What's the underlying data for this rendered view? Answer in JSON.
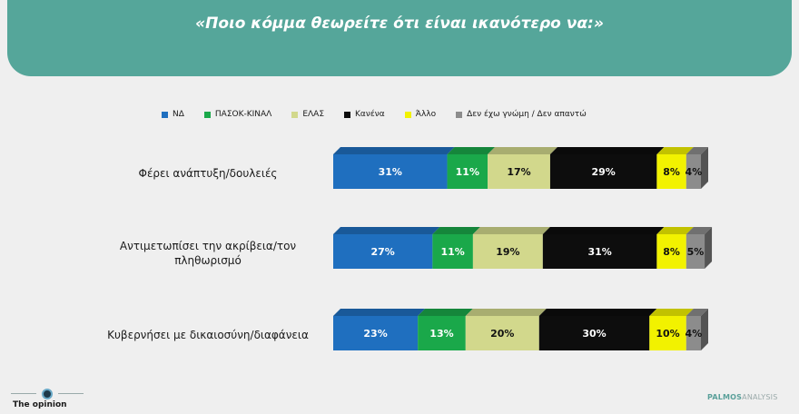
{
  "header": {
    "title": "«Ποιο κόμμα θεωρείτε ότι είναι ικανότερο να:»"
  },
  "colors": {
    "header_bg": "#55a69a",
    "series": [
      "#1f6fbf",
      "#1aa84a",
      "#d2d88c",
      "#0d0d0d",
      "#f2f200",
      "#8c8c8c"
    ]
  },
  "chart_data": {
    "type": "bar",
    "orientation": "horizontal",
    "stacked": true,
    "categories": [
      "Φέρει ανάπτυξη/δουλειές",
      "Αντιμετωπίσει την ακρίβεια/τον πληθωρισμό",
      "Κυβερνήσει με δικαιοσύνη/διαφάνεια"
    ],
    "category_lines": [
      [
        "Φέρει ανάπτυξη/δουλειές"
      ],
      [
        "Αντιμετωπίσει την ακρίβεια/τον",
        "πληθωρισμό"
      ],
      [
        "Κυβερνήσει με δικαιοσύνη/διαφάνεια"
      ]
    ],
    "series": [
      {
        "name": "ΝΔ",
        "color": "#1f6fbf",
        "values": [
          31,
          27,
          23
        ]
      },
      {
        "name": "ΠΑΣΟΚ-ΚΙΝΑΛ",
        "color": "#1aa84a",
        "values": [
          11,
          11,
          13
        ]
      },
      {
        "name": "ΕΛΑΣ",
        "color": "#d2d88c",
        "values": [
          17,
          19,
          20
        ]
      },
      {
        "name": "Κανένα",
        "color": "#0d0d0d",
        "values": [
          29,
          31,
          30
        ]
      },
      {
        "name": "Άλλο",
        "color": "#f2f200",
        "values": [
          8,
          8,
          10
        ]
      },
      {
        "name": "Δεν έχω γνώμη / Δεν απαντώ",
        "color": "#8c8c8c",
        "values": [
          4,
          5,
          4
        ]
      }
    ],
    "data_labels": [
      [
        "31%",
        "11%",
        "17%",
        "29%",
        "8%",
        "4%"
      ],
      [
        "27%",
        "11%",
        "19%",
        "31%",
        "8%",
        "5%"
      ],
      [
        "23%",
        "13%",
        "20%",
        "30%",
        "10%",
        "4%"
      ]
    ],
    "legend_position": "top",
    "grid": false,
    "xlim": [
      0,
      100
    ]
  },
  "branding": {
    "left_logo": "The opinion",
    "right_logo_a": "PALMOS",
    "right_logo_b": "ANALYSIS"
  }
}
